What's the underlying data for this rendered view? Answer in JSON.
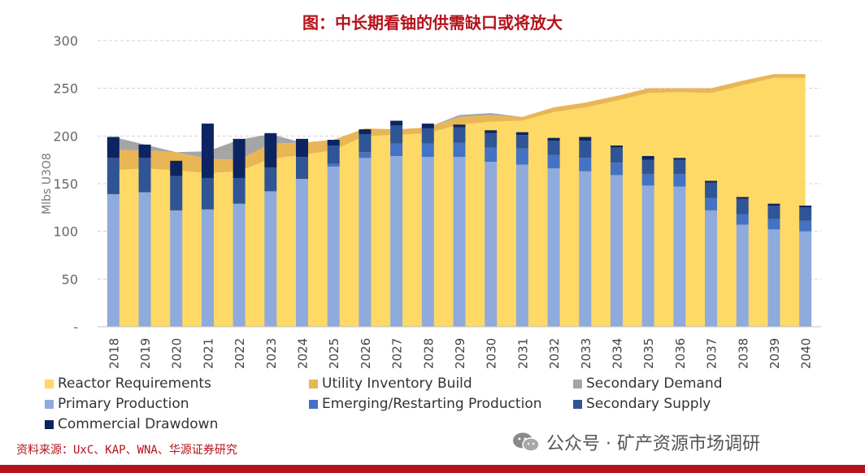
{
  "title": "图：中长期看铀的供需缺口或将放大",
  "source": "资料来源：UxC、KAP、WNA、华源证券研究",
  "watermark": "公众号 · 矿产资源市场调研",
  "colors": {
    "reactor": "#ffd966",
    "utility": "#e9b655",
    "secondary_demand": "#a5a5a5",
    "primary": "#8faadc",
    "emerging": "#4472c4",
    "secondary_supply": "#2f5597",
    "commercial": "#0c2461",
    "title": "#b5121b"
  },
  "chart_data": {
    "type": "bar",
    "ylabel": "Mlbs U3O8",
    "yticks": [
      "-",
      "50",
      "100",
      "150",
      "200",
      "250",
      "300"
    ],
    "ylim": [
      0,
      300
    ],
    "grid": true,
    "legend_position": "bottom",
    "categories": [
      "2018",
      "2019",
      "2020",
      "2021",
      "2022",
      "2023",
      "2024",
      "2025",
      "2026",
      "2027",
      "2028",
      "2029",
      "2030",
      "2031",
      "2032",
      "2033",
      "2034",
      "2035",
      "2036",
      "2037",
      "2038",
      "2039",
      "2040"
    ],
    "area_series": [
      {
        "name": "Reactor Requirements",
        "values": [
          164,
          166,
          164,
          161,
          163,
          176,
          180,
          185,
          200,
          201,
          203,
          212,
          215,
          216,
          225,
          230,
          237,
          245,
          246,
          245,
          253,
          261,
          261
        ]
      },
      {
        "name": "Utility Inventory Build",
        "values": [
          21,
          19,
          19,
          15,
          12,
          16,
          13,
          11,
          8,
          6,
          6,
          8,
          7,
          4,
          5,
          5,
          5,
          5,
          4,
          5,
          5,
          4,
          4
        ]
      },
      {
        "name": "Secondary Demand",
        "values": [
          14,
          6,
          0,
          8,
          21,
          10,
          0,
          0,
          0,
          0,
          0,
          2,
          2,
          0,
          0,
          0,
          0,
          0,
          0,
          0,
          0,
          0,
          0
        ]
      }
    ],
    "bar_series": [
      {
        "name": "Primary Production",
        "values": [
          139,
          141,
          122,
          123,
          129,
          142,
          155,
          168,
          177,
          179,
          178,
          178,
          173,
          170,
          166,
          163,
          159,
          148,
          147,
          122,
          107,
          102,
          100
        ]
      },
      {
        "name": "Emerging/Restarting Production",
        "values": [
          0,
          0,
          0,
          0,
          0,
          0,
          0,
          3,
          6,
          13,
          14,
          15,
          15,
          17,
          14,
          14,
          13,
          12,
          13,
          13,
          11,
          11,
          11
        ]
      },
      {
        "name": "Secondary Supply",
        "values": [
          38,
          36,
          36,
          33,
          27,
          25,
          23,
          19,
          19,
          19,
          16,
          16,
          15,
          14,
          15,
          18,
          16,
          15,
          15,
          16,
          16,
          14,
          14
        ]
      },
      {
        "name": "Commercial Drawdown",
        "values": [
          22,
          14,
          16,
          57,
          41,
          36,
          19,
          6,
          5,
          5,
          5,
          3,
          3,
          3,
          3,
          4,
          2,
          4,
          2,
          2,
          2,
          2,
          2
        ]
      }
    ]
  },
  "legend": [
    {
      "label": "Reactor Requirements",
      "color": "#ffd966"
    },
    {
      "label": "Utility Inventory Build",
      "color": "#e9b655"
    },
    {
      "label": "Secondary Demand",
      "color": "#a5a5a5"
    },
    {
      "label": "Primary Production",
      "color": "#8faadc"
    },
    {
      "label": "Emerging/Restarting Production",
      "color": "#4472c4"
    },
    {
      "label": "Secondary Supply",
      "color": "#2f5597"
    },
    {
      "label": "Commercial Drawdown",
      "color": "#0c2461"
    }
  ]
}
